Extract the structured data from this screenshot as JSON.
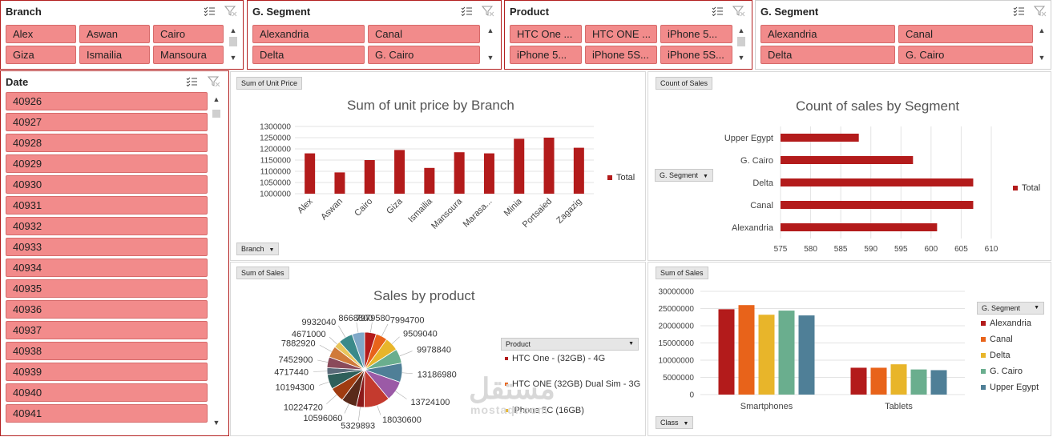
{
  "slicers": {
    "branch": {
      "title": "Branch",
      "items": [
        "Alex",
        "Aswan",
        "Cairo",
        "Giza",
        "Ismailia",
        "Mansoura"
      ]
    },
    "segment_1": {
      "title": "G. Segment",
      "items": [
        "Alexandria",
        "Canal",
        "Delta",
        "G. Cairo"
      ]
    },
    "product": {
      "title": "Product",
      "items": [
        "HTC One ...",
        "HTC ONE ...",
        "iPhone 5...",
        "iPhone 5...",
        "iPhone 5S...",
        "iPhone 5S..."
      ]
    },
    "segment_2": {
      "title": "G. Segment",
      "items": [
        "Alexandria",
        "Canal",
        "Delta",
        "G. Cairo"
      ]
    },
    "date": {
      "title": "Date",
      "items": [
        "40926",
        "40927",
        "40928",
        "40929",
        "40930",
        "40931",
        "40932",
        "40933",
        "40934",
        "40935",
        "40936",
        "40937",
        "40938",
        "40939",
        "40940",
        "40941"
      ]
    }
  },
  "field_buttons": {
    "unit_price_value": "Sum of Unit Price",
    "branch_axis": "Branch",
    "count_sales_value": "Count of Sales",
    "segment_axis": "G. Segment",
    "sum_sales_pie": "Sum of Sales",
    "product_legend": "Product",
    "sum_sales_bar": "Sum of Sales",
    "class_axis": "Class",
    "segment_legend": "G. Segment"
  },
  "watermark": {
    "arabic": "مستقل",
    "latin": "mostaql.com"
  },
  "colors": {
    "accent_red": "#b31b1b",
    "slicer_item": "#f28b8b",
    "series": [
      "#b31b1b",
      "#e8631a",
      "#e8b52a",
      "#6aae8e",
      "#4f7f97"
    ],
    "pie": [
      "#b31b1b",
      "#e8631a",
      "#e8b52a",
      "#6aae8e",
      "#4f7f97",
      "#9b5aa6",
      "#c43a2e",
      "#8b1a1a",
      "#5a2a1a",
      "#a03c10",
      "#2f5f5a",
      "#5b6b7a",
      "#8a4a5a",
      "#d07a3a",
      "#e8c45a",
      "#3a8a8a",
      "#7fa8c8"
    ]
  },
  "chart_data": [
    {
      "type": "bar",
      "title": "Sum of unit price by Branch",
      "categories": [
        "Alex",
        "Aswan",
        "Cairo",
        "Giza",
        "Ismailia",
        "Mansoura",
        "Marasa...",
        "Minia",
        "Portsaied",
        "Zagazig"
      ],
      "series": [
        {
          "name": "Total",
          "values": [
            1180000,
            1095000,
            1150000,
            1195000,
            1115000,
            1185000,
            1180000,
            1245000,
            1250000,
            1205000
          ]
        }
      ],
      "yticks": [
        "1000000",
        "1050000",
        "1100000",
        "1150000",
        "1200000",
        "1250000",
        "1300000"
      ],
      "ylim": [
        1000000,
        1300000
      ],
      "grid": true,
      "legend": "right"
    },
    {
      "type": "bar",
      "orientation": "horizontal",
      "title": "Count of sales by Segment",
      "categories": [
        "Upper Egypt",
        "G. Cairo",
        "Delta",
        "Canal",
        "Alexandria"
      ],
      "series": [
        {
          "name": "Total",
          "values": [
            588,
            597,
            607,
            607,
            601
          ]
        }
      ],
      "xticks": [
        "575",
        "580",
        "585",
        "590",
        "595",
        "600",
        "605",
        "610"
      ],
      "xlim": [
        575,
        610
      ],
      "grid": true,
      "legend": "right"
    },
    {
      "type": "pie",
      "title": "Sales by product",
      "values": [
        7979580,
        7994700,
        9509040,
        9978840,
        13186980,
        13724100,
        18030600,
        5329893,
        10596060,
        10224720,
        10194300,
        4717440,
        7452900,
        7882920,
        4671000,
        9932040,
        8668800
      ],
      "labels": [
        "7979580",
        "7994700",
        "9509040",
        "9978840",
        "13186980",
        "13724100",
        "18030600",
        "5329893",
        "10596060",
        "10224720",
        "10194300",
        "4717440",
        "7452900",
        "7882920",
        "4671000",
        "9932040",
        "8668800"
      ],
      "legend_entries": [
        "HTC One - (32GB) - 4G",
        "HTC ONE (32GB) Dual Sim - 3G",
        "iPhone 5C (16GB)"
      ],
      "legend": "right"
    },
    {
      "type": "bar",
      "title": "",
      "categories": [
        "Smartphones",
        "Tablets"
      ],
      "series": [
        {
          "name": "Alexandria",
          "values": [
            24800000,
            7800000
          ]
        },
        {
          "name": "Canal",
          "values": [
            26000000,
            7800000
          ]
        },
        {
          "name": "Delta",
          "values": [
            23200000,
            8800000
          ]
        },
        {
          "name": "G. Cairo",
          "values": [
            24400000,
            7300000
          ]
        },
        {
          "name": "Upper Egypt",
          "values": [
            23000000,
            7100000
          ]
        }
      ],
      "yticks": [
        "0",
        "5000000",
        "10000000",
        "15000000",
        "20000000",
        "25000000",
        "30000000"
      ],
      "ylim": [
        0,
        30000000
      ],
      "grid": true,
      "legend": "right"
    }
  ]
}
